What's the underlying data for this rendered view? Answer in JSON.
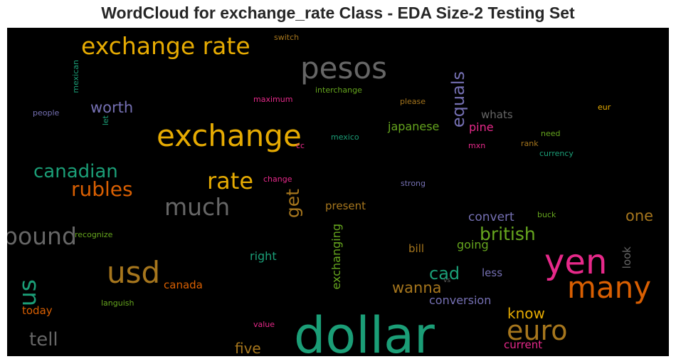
{
  "chart_data": {
    "type": "wordcloud",
    "title": "WordCloud for exchange_rate Class - EDA Size-2 Testing Set",
    "background": "#000000",
    "words": [
      {
        "text": "dollar",
        "color": "#1b9e77"
      },
      {
        "text": "yen",
        "color": "#e7298a"
      },
      {
        "text": "exchange",
        "color": "#e6ab02"
      },
      {
        "text": "many",
        "color": "#d95f02"
      },
      {
        "text": "pesos",
        "color": "#666666"
      },
      {
        "text": "usd",
        "color": "#a6761d"
      },
      {
        "text": "euro",
        "color": "#a6761d"
      },
      {
        "text": "exchange rate",
        "color": "#e6ab02"
      },
      {
        "text": "pound",
        "color": "#666666"
      },
      {
        "text": "much",
        "color": "#666666"
      },
      {
        "text": "rate",
        "color": "#e6ab02"
      },
      {
        "text": "us",
        "color": "#1b9e77"
      },
      {
        "text": "rubles",
        "color": "#d95f02"
      },
      {
        "text": "canadian",
        "color": "#1b9e77"
      },
      {
        "text": "british",
        "color": "#66a61e"
      },
      {
        "text": "equals",
        "color": "#7570b3"
      },
      {
        "text": "tell",
        "color": "#666666"
      },
      {
        "text": "get",
        "color": "#a6761d"
      },
      {
        "text": "worth",
        "color": "#7570b3"
      },
      {
        "text": "cad",
        "color": "#1b9e77"
      },
      {
        "text": "wanna",
        "color": "#a6761d"
      },
      {
        "text": "five",
        "color": "#a6761d"
      },
      {
        "text": "know",
        "color": "#e6ab02"
      },
      {
        "text": "one",
        "color": "#a6761d"
      },
      {
        "text": "exchanging",
        "color": "#66a61e"
      },
      {
        "text": "japanese",
        "color": "#66a61e"
      },
      {
        "text": "pine",
        "color": "#e7298a"
      },
      {
        "text": "convert",
        "color": "#7570b3"
      },
      {
        "text": "conversion",
        "color": "#7570b3"
      },
      {
        "text": "going",
        "color": "#66a61e"
      },
      {
        "text": "whats",
        "color": "#666666"
      },
      {
        "text": "right",
        "color": "#1b9e77"
      },
      {
        "text": "present",
        "color": "#a6761d"
      },
      {
        "text": "canada",
        "color": "#d95f02"
      },
      {
        "text": "current",
        "color": "#e7298a"
      },
      {
        "text": "look",
        "color": "#666666"
      },
      {
        "text": "less",
        "color": "#7570b3"
      },
      {
        "text": "bill",
        "color": "#a6761d"
      },
      {
        "text": "today",
        "color": "#d95f02"
      },
      {
        "text": "switch",
        "color": "#a6761d"
      },
      {
        "text": "mexican",
        "color": "#1b9e77"
      },
      {
        "text": "interchange",
        "color": "#66a61e"
      },
      {
        "text": "maximum",
        "color": "#e7298a"
      },
      {
        "text": "please",
        "color": "#a6761d"
      },
      {
        "text": "people",
        "color": "#7570b3"
      },
      {
        "text": "let",
        "color": "#1b9e77"
      },
      {
        "text": "mexico",
        "color": "#1b9e77"
      },
      {
        "text": "cc",
        "color": "#e7298a"
      },
      {
        "text": "eur",
        "color": "#e6ab02"
      },
      {
        "text": "need",
        "color": "#66a61e"
      },
      {
        "text": "rank",
        "color": "#a6761d"
      },
      {
        "text": "mxn",
        "color": "#e7298a"
      },
      {
        "text": "currency",
        "color": "#1b9e77"
      },
      {
        "text": "change",
        "color": "#e7298a"
      },
      {
        "text": "strong",
        "color": "#7570b3"
      },
      {
        "text": "buck",
        "color": "#66a61e"
      },
      {
        "text": "recognize",
        "color": "#66a61e"
      },
      {
        "text": "vs",
        "color": "#666666"
      },
      {
        "text": "languish",
        "color": "#66a61e"
      },
      {
        "text": "value",
        "color": "#e7298a"
      }
    ]
  }
}
